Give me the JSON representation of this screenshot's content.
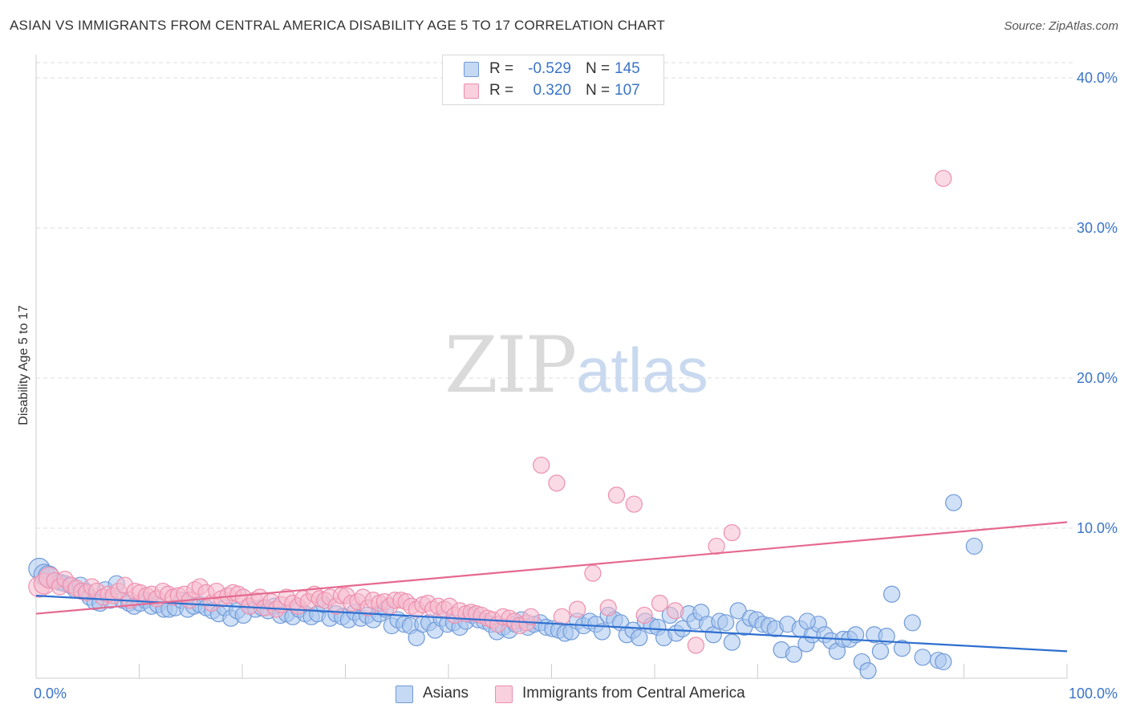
{
  "title": "ASIAN VS IMMIGRANTS FROM CENTRAL AMERICA DISABILITY AGE 5 TO 17 CORRELATION CHART",
  "source": "Source: ZipAtlas.com",
  "watermark": {
    "zip": "ZIP",
    "atlas": "atlas"
  },
  "colors": {
    "blue_fill": "#a9c6ef",
    "blue_stroke": "#6f9ad8",
    "blue_line": "#2e6fd0",
    "pink_fill": "#f6bccd",
    "pink_stroke": "#ec8fae",
    "pink_line": "#e5698f",
    "axis_text": "#3a74c9",
    "grid": "#dddddd"
  },
  "legend_stats": [
    {
      "r_label": "R =",
      "r_value": "-0.529",
      "n_label": "N =",
      "n_value": "145",
      "color": "blue"
    },
    {
      "r_label": "R =",
      "r_value": "0.320",
      "n_label": "N =",
      "n_value": "107",
      "color": "pink"
    }
  ],
  "chart_data": {
    "type": "scatter",
    "title": "ASIAN VS IMMIGRANTS FROM CENTRAL AMERICA DISABILITY AGE 5 TO 17 CORRELATION CHART",
    "xlabel": "",
    "ylabel": "Disability Age 5 to 17",
    "xlim": [
      0,
      100
    ],
    "ylim": [
      0,
      40
    ],
    "x_tick_labels": [
      "0.0%",
      "100.0%"
    ],
    "y_ticks": [
      10,
      20,
      30,
      40
    ],
    "y_tick_labels": [
      "10.0%",
      "20.0%",
      "30.0%",
      "40.0%"
    ],
    "grid": true,
    "legend_position": "bottom",
    "series": [
      {
        "name": "Asians",
        "color": "blue",
        "trend": {
          "x": [
            0,
            100
          ],
          "y": [
            5.5,
            1.8
          ]
        },
        "points": [
          [
            0.3,
            7.3
          ],
          [
            0.8,
            6.9
          ],
          [
            1.2,
            6.8
          ],
          [
            1.8,
            6.5
          ],
          [
            2.3,
            6.4
          ],
          [
            2.8,
            6.3
          ],
          [
            3.3,
            6.2
          ],
          [
            3.8,
            5.9
          ],
          [
            4.3,
            6.2
          ],
          [
            4.8,
            5.8
          ],
          [
            5.2,
            5.4
          ],
          [
            5.7,
            5.1
          ],
          [
            6.2,
            5.0
          ],
          [
            6.7,
            5.9
          ],
          [
            7.2,
            5.2
          ],
          [
            7.8,
            6.3
          ],
          [
            8.4,
            5.2
          ],
          [
            9.0,
            5.0
          ],
          [
            9.5,
            4.8
          ],
          [
            10.1,
            5.0
          ],
          [
            10.6,
            5.2
          ],
          [
            11.2,
            4.8
          ],
          [
            11.8,
            4.9
          ],
          [
            12.4,
            4.6
          ],
          [
            12.9,
            4.6
          ],
          [
            13.5,
            4.7
          ],
          [
            14.1,
            5.2
          ],
          [
            14.7,
            4.6
          ],
          [
            15.3,
            4.8
          ],
          [
            15.9,
            4.9
          ],
          [
            16.5,
            4.7
          ],
          [
            17.1,
            4.5
          ],
          [
            17.7,
            4.3
          ],
          [
            18.3,
            4.7
          ],
          [
            18.9,
            4.0
          ],
          [
            19.5,
            4.5
          ],
          [
            20.1,
            4.2
          ],
          [
            20.7,
            4.8
          ],
          [
            21.3,
            4.6
          ],
          [
            21.9,
            4.7
          ],
          [
            22.5,
            4.5
          ],
          [
            23.1,
            4.8
          ],
          [
            23.7,
            4.2
          ],
          [
            24.3,
            4.3
          ],
          [
            24.9,
            4.1
          ],
          [
            25.5,
            4.6
          ],
          [
            26.1,
            4.3
          ],
          [
            26.7,
            4.1
          ],
          [
            27.3,
            4.3
          ],
          [
            27.9,
            4.9
          ],
          [
            28.5,
            4.0
          ],
          [
            29.1,
            4.3
          ],
          [
            29.7,
            4.1
          ],
          [
            30.3,
            3.9
          ],
          [
            30.9,
            4.4
          ],
          [
            31.5,
            4.0
          ],
          [
            32.1,
            4.2
          ],
          [
            32.7,
            3.9
          ],
          [
            33.3,
            4.3
          ],
          [
            33.9,
            4.6
          ],
          [
            34.5,
            3.5
          ],
          [
            35.1,
            3.9
          ],
          [
            35.7,
            3.6
          ],
          [
            36.3,
            3.5
          ],
          [
            36.9,
            2.7
          ],
          [
            37.5,
            3.6
          ],
          [
            38.1,
            3.7
          ],
          [
            38.7,
            3.2
          ],
          [
            39.3,
            4.0
          ],
          [
            39.9,
            3.6
          ],
          [
            40.5,
            3.7
          ],
          [
            41.1,
            3.4
          ],
          [
            41.7,
            3.8
          ],
          [
            42.3,
            4.2
          ],
          [
            42.9,
            3.9
          ],
          [
            43.5,
            3.8
          ],
          [
            44.1,
            3.6
          ],
          [
            44.7,
            3.1
          ],
          [
            45.3,
            3.4
          ],
          [
            45.9,
            3.2
          ],
          [
            46.5,
            3.6
          ],
          [
            47.1,
            3.9
          ],
          [
            47.7,
            3.4
          ],
          [
            48.3,
            3.6
          ],
          [
            48.9,
            3.7
          ],
          [
            49.5,
            3.4
          ],
          [
            50.1,
            3.3
          ],
          [
            50.7,
            3.2
          ],
          [
            51.3,
            3.0
          ],
          [
            51.9,
            3.1
          ],
          [
            52.5,
            3.8
          ],
          [
            53.1,
            3.5
          ],
          [
            53.7,
            3.8
          ],
          [
            54.3,
            3.6
          ],
          [
            54.9,
            3.1
          ],
          [
            55.5,
            4.2
          ],
          [
            56.1,
            3.9
          ],
          [
            56.7,
            3.7
          ],
          [
            57.3,
            2.9
          ],
          [
            57.9,
            3.2
          ],
          [
            58.5,
            2.7
          ],
          [
            59.1,
            3.8
          ],
          [
            59.7,
            3.5
          ],
          [
            60.3,
            3.4
          ],
          [
            60.9,
            2.7
          ],
          [
            61.5,
            4.2
          ],
          [
            62.1,
            3.0
          ],
          [
            62.7,
            3.3
          ],
          [
            63.3,
            4.3
          ],
          [
            63.9,
            3.8
          ],
          [
            64.5,
            4.4
          ],
          [
            65.1,
            3.6
          ],
          [
            65.7,
            2.9
          ],
          [
            66.3,
            3.8
          ],
          [
            66.9,
            3.7
          ],
          [
            67.5,
            2.4
          ],
          [
            68.1,
            4.5
          ],
          [
            68.7,
            3.4
          ],
          [
            69.3,
            4.0
          ],
          [
            69.9,
            3.9
          ],
          [
            70.5,
            3.6
          ],
          [
            71.1,
            3.5
          ],
          [
            71.7,
            3.3
          ],
          [
            72.3,
            1.9
          ],
          [
            72.9,
            3.6
          ],
          [
            73.5,
            1.6
          ],
          [
            74.1,
            3.3
          ],
          [
            74.7,
            2.3
          ],
          [
            75.3,
            2.9
          ],
          [
            75.9,
            3.6
          ],
          [
            76.5,
            2.9
          ],
          [
            77.1,
            2.5
          ],
          [
            77.7,
            1.8
          ],
          [
            78.3,
            2.6
          ],
          [
            78.9,
            2.6
          ],
          [
            79.5,
            2.9
          ],
          [
            80.1,
            1.1
          ],
          [
            80.7,
            0.5
          ],
          [
            81.3,
            2.9
          ],
          [
            81.9,
            1.8
          ],
          [
            82.5,
            2.8
          ],
          [
            83.0,
            5.6
          ],
          [
            84.0,
            2.0
          ],
          [
            86.0,
            1.4
          ],
          [
            87.5,
            1.2
          ],
          [
            88.0,
            1.1
          ],
          [
            89.0,
            11.7
          ],
          [
            91.0,
            8.8
          ],
          [
            74.8,
            3.8
          ],
          [
            85.0,
            3.7
          ]
        ]
      },
      {
        "name": "Immigrants from Central America",
        "color": "pink",
        "trend": {
          "x": [
            0,
            100
          ],
          "y": [
            4.3,
            10.4
          ]
        },
        "points": [
          [
            0.3,
            6.1
          ],
          [
            0.8,
            6.3
          ],
          [
            1.3,
            6.7
          ],
          [
            1.8,
            6.5
          ],
          [
            2.3,
            6.1
          ],
          [
            2.8,
            6.6
          ],
          [
            3.4,
            6.2
          ],
          [
            3.9,
            6.0
          ],
          [
            4.4,
            5.8
          ],
          [
            4.9,
            5.7
          ],
          [
            5.4,
            6.1
          ],
          [
            5.9,
            5.8
          ],
          [
            6.5,
            5.4
          ],
          [
            7.0,
            5.6
          ],
          [
            7.5,
            5.5
          ],
          [
            8.0,
            5.8
          ],
          [
            8.6,
            6.2
          ],
          [
            9.1,
            5.2
          ],
          [
            9.6,
            5.8
          ],
          [
            10.1,
            5.7
          ],
          [
            10.7,
            5.5
          ],
          [
            11.2,
            5.6
          ],
          [
            11.7,
            5.3
          ],
          [
            12.3,
            5.8
          ],
          [
            12.8,
            5.6
          ],
          [
            13.3,
            5.4
          ],
          [
            13.8,
            5.5
          ],
          [
            14.4,
            5.6
          ],
          [
            14.9,
            5.2
          ],
          [
            15.4,
            5.9
          ],
          [
            15.9,
            6.1
          ],
          [
            16.5,
            5.7
          ],
          [
            17.0,
            5.0
          ],
          [
            17.5,
            5.8
          ],
          [
            18.0,
            5.3
          ],
          [
            18.6,
            5.5
          ],
          [
            19.1,
            5.7
          ],
          [
            19.6,
            5.6
          ],
          [
            20.1,
            5.4
          ],
          [
            20.7,
            4.8
          ],
          [
            21.2,
            5.2
          ],
          [
            21.7,
            5.4
          ],
          [
            22.2,
            4.7
          ],
          [
            22.8,
            5.1
          ],
          [
            23.3,
            4.6
          ],
          [
            23.8,
            4.9
          ],
          [
            24.3,
            5.4
          ],
          [
            24.9,
            5.0
          ],
          [
            25.4,
            4.8
          ],
          [
            25.9,
            5.3
          ],
          [
            26.4,
            5.1
          ],
          [
            27.0,
            5.6
          ],
          [
            27.5,
            5.3
          ],
          [
            28.0,
            5.2
          ],
          [
            28.5,
            5.4
          ],
          [
            29.1,
            4.8
          ],
          [
            29.6,
            5.5
          ],
          [
            30.1,
            5.5
          ],
          [
            30.6,
            5.0
          ],
          [
            31.2,
            5.1
          ],
          [
            31.7,
            5.4
          ],
          [
            32.2,
            4.7
          ],
          [
            32.7,
            5.2
          ],
          [
            33.3,
            5.0
          ],
          [
            33.8,
            5.1
          ],
          [
            34.3,
            4.8
          ],
          [
            34.8,
            5.2
          ],
          [
            35.4,
            5.2
          ],
          [
            35.9,
            5.1
          ],
          [
            36.4,
            4.8
          ],
          [
            36.9,
            4.6
          ],
          [
            37.5,
            4.9
          ],
          [
            38.0,
            5.0
          ],
          [
            38.5,
            4.6
          ],
          [
            39.0,
            4.8
          ],
          [
            39.6,
            4.6
          ],
          [
            40.1,
            4.8
          ],
          [
            40.6,
            4.2
          ],
          [
            41.1,
            4.5
          ],
          [
            41.7,
            4.3
          ],
          [
            42.2,
            4.4
          ],
          [
            42.7,
            4.3
          ],
          [
            43.2,
            4.2
          ],
          [
            43.8,
            4.0
          ],
          [
            44.3,
            3.9
          ],
          [
            44.8,
            3.6
          ],
          [
            45.3,
            4.1
          ],
          [
            45.9,
            4.0
          ],
          [
            46.4,
            3.8
          ],
          [
            46.9,
            3.5
          ],
          [
            47.6,
            3.7
          ],
          [
            48.0,
            4.1
          ],
          [
            49.0,
            14.2
          ],
          [
            50.5,
            13.0
          ],
          [
            51.0,
            4.1
          ],
          [
            52.5,
            4.6
          ],
          [
            54.0,
            7.0
          ],
          [
            55.5,
            4.7
          ],
          [
            56.3,
            12.2
          ],
          [
            58.0,
            11.6
          ],
          [
            59.0,
            4.2
          ],
          [
            60.5,
            5.0
          ],
          [
            62.0,
            4.5
          ],
          [
            64.0,
            2.2
          ],
          [
            66.0,
            8.8
          ],
          [
            67.5,
            9.7
          ],
          [
            88.0,
            33.3
          ]
        ]
      }
    ]
  },
  "bottom_legend": [
    {
      "label": "Asians",
      "color": "blue"
    },
    {
      "label": "Immigrants from Central America",
      "color": "pink"
    }
  ]
}
